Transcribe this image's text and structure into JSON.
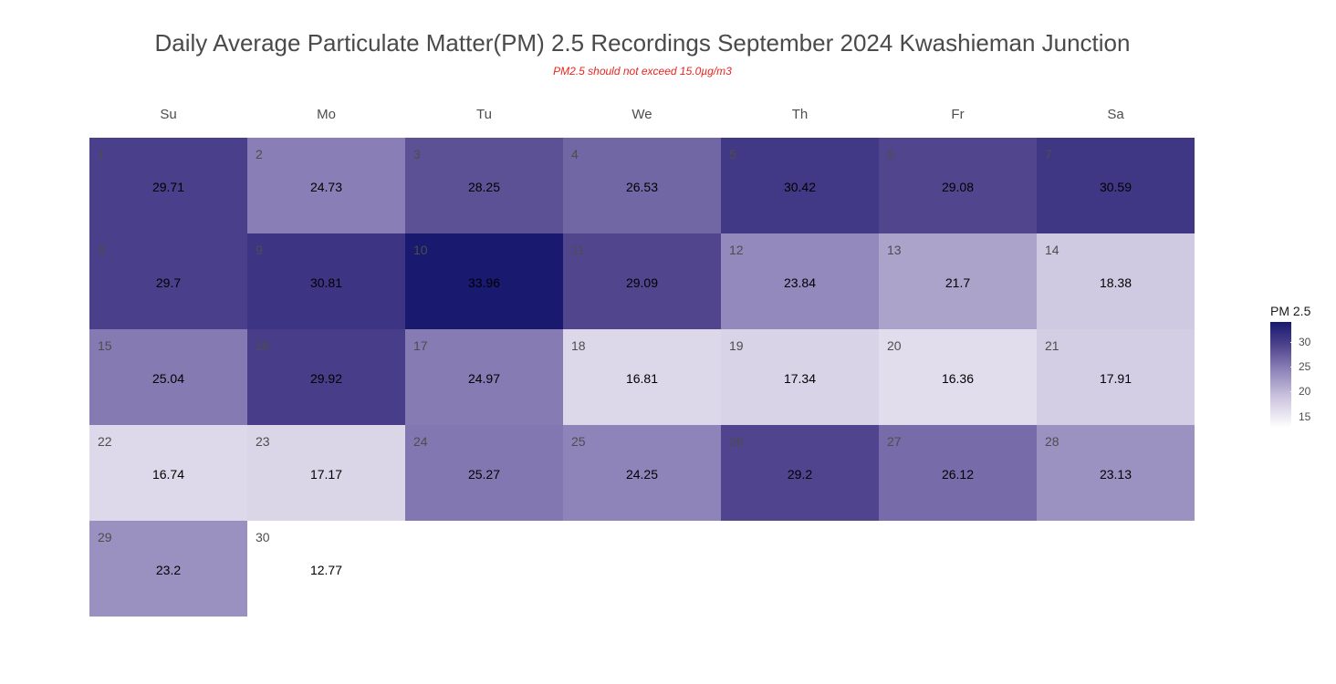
{
  "chart_data": {
    "type": "heatmap",
    "title": "Daily Average Particulate Matter(PM) 2.5 Recordings September 2024 Kwashieman Junction",
    "subtitle": "PM2.5 should not exceed 15.0µg/m3",
    "weekdays": [
      "Su",
      "Mo",
      "Tu",
      "We",
      "Th",
      "Fr",
      "Sa"
    ],
    "first_weekday_index": 0,
    "days": [
      1,
      2,
      3,
      4,
      5,
      6,
      7,
      8,
      9,
      10,
      11,
      12,
      13,
      14,
      15,
      16,
      17,
      18,
      19,
      20,
      21,
      22,
      23,
      24,
      25,
      26,
      27,
      28,
      29,
      30
    ],
    "values": [
      29.71,
      24.73,
      28.25,
      26.53,
      30.42,
      29.08,
      30.59,
      29.7,
      30.81,
      33.96,
      29.09,
      23.84,
      21.7,
      18.38,
      25.04,
      29.92,
      24.97,
      16.81,
      17.34,
      16.36,
      17.91,
      16.74,
      17.17,
      25.27,
      24.25,
      29.2,
      26.12,
      23.13,
      23.2,
      12.77
    ],
    "value_labels": [
      "29.71",
      "24.73",
      "28.25",
      "26.53",
      "30.42",
      "29.08",
      "30.59",
      "29.7",
      "30.81",
      "33.96",
      "29.09",
      "23.84",
      "21.7",
      "18.38",
      "25.04",
      "29.92",
      "24.97",
      "16.81",
      "17.34",
      "16.36",
      "17.91",
      "16.74",
      "17.17",
      "25.27",
      "24.25",
      "29.2",
      "26.12",
      "23.13",
      "23.2",
      "12.77"
    ],
    "legend": {
      "title": "PM 2.5",
      "ticks": [
        15,
        20,
        25,
        30
      ],
      "tick_labels": [
        "15",
        "20",
        "25",
        "30"
      ],
      "range": [
        12.77,
        33.96
      ],
      "low_color": "#ffffff",
      "high_color": "#191970",
      "placement": "right"
    },
    "subtitle_color": "#e8251f"
  }
}
